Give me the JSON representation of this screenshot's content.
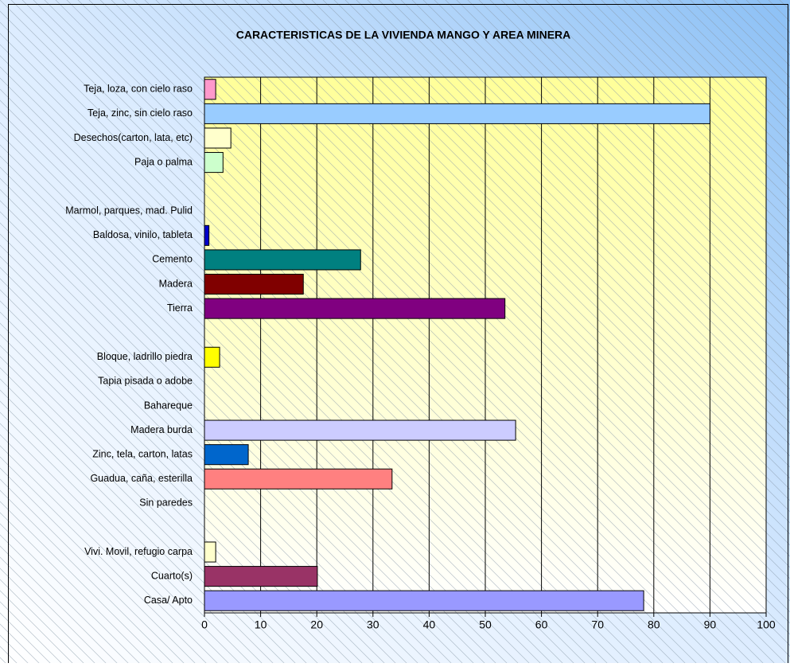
{
  "chart_data": {
    "type": "bar",
    "orientation": "horizontal",
    "title": "CARACTERISTICAS DE LA VIVIENDA MANGO Y AREA MINERA",
    "categories": [
      "Teja, loza, con cielo raso",
      "Teja, zinc, sin cielo raso",
      "Desechos(carton, lata, etc)",
      "Paja o palma",
      null,
      "Marmol, parques, mad. Pulid",
      "Baldosa, vinilo, tableta",
      "Cemento",
      "Madera",
      "Tierra",
      null,
      "Bloque, ladrillo piedra",
      "Tapia pisada o adobe",
      "Bahareque",
      "Madera burda",
      "Zinc, tela, carton, latas",
      "Guadua, caña, esterilla",
      "Sin paredes",
      null,
      "Vivi. Movil, refugio carpa",
      "Cuarto(s)",
      "Casa/ Apto"
    ],
    "values": [
      2,
      90,
      4.7,
      3.3,
      null,
      0,
      0.8,
      27.8,
      17.6,
      53.5,
      null,
      2.7,
      0,
      0,
      55.4,
      7.8,
      33.4,
      0,
      null,
      2,
      20.1,
      78.2
    ],
    "colors": [
      "#ff99cc",
      "#99ccff",
      "#ffffcc",
      "#ccffcc",
      null,
      "#ffffff",
      "#0000cc",
      "#008080",
      "#800000",
      "#800080",
      null,
      "#ffff00",
      "#ffffff",
      "#ffffff",
      "#ccccff",
      "#0066cc",
      "#ff8080",
      "#ffffff",
      null,
      "#ffffcc",
      "#993366",
      "#9999ff"
    ],
    "xlim": [
      0,
      100
    ],
    "xticks": [
      0,
      10,
      20,
      30,
      40,
      50,
      60,
      70,
      80,
      90,
      100
    ],
    "grid": true
  }
}
